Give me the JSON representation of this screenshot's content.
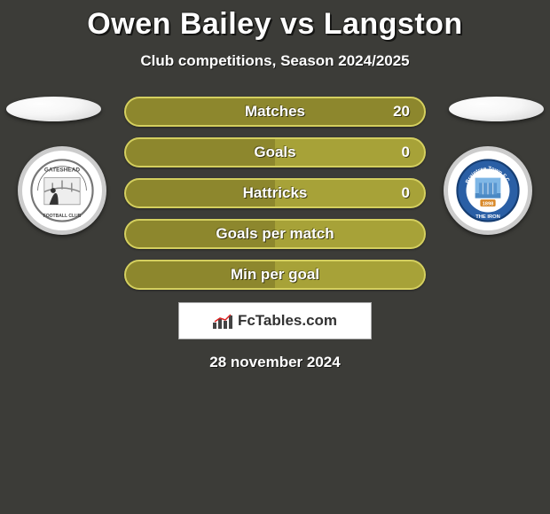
{
  "title": "Owen Bailey vs Langston",
  "subtitle": "Club competitions, Season 2024/2025",
  "date": "28 november 2024",
  "brand": "FcTables.com",
  "colors": {
    "background": "#3c3c38",
    "bar_fill_dark": "#8d872d",
    "bar_fill_light": "#a7a238",
    "bar_border": "#d4cf5f",
    "text": "#ffffff"
  },
  "bars": [
    {
      "label": "Matches",
      "value": "20",
      "fill_pct": 100
    },
    {
      "label": "Goals",
      "value": "0",
      "fill_pct": 50
    },
    {
      "label": "Hattricks",
      "value": "0",
      "fill_pct": 50
    },
    {
      "label": "Goals per match",
      "value": "",
      "fill_pct": 50
    },
    {
      "label": "Min per goal",
      "value": "",
      "fill_pct": 50
    }
  ],
  "club_left": {
    "name": "Gateshead",
    "label_top": "GATESHEAD",
    "label_bottom": "FOOTBALL CLUB"
  },
  "club_right": {
    "name": "Braintree Town",
    "label_top": "Braintree Town",
    "year": "1898",
    "label_bottom": "THE IRON"
  }
}
